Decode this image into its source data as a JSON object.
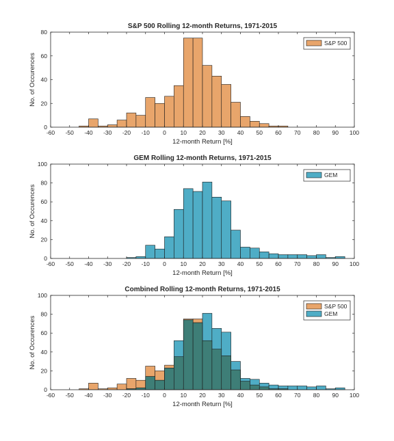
{
  "chart_data": [
    {
      "type": "bar",
      "title": "S&P 500 Rolling 12-month Returns, 1971-2015",
      "xlabel": "12-month Return [%]",
      "ylabel": "No. of Occurences",
      "xlim": [
        -60,
        100
      ],
      "ylim": [
        0,
        80
      ],
      "xticks": [
        -60,
        -50,
        -40,
        -30,
        -20,
        -10,
        0,
        10,
        20,
        30,
        40,
        50,
        60,
        70,
        80,
        90,
        100
      ],
      "yticks": [
        0,
        20,
        40,
        60,
        80
      ],
      "bin_width": 5,
      "legend_position": "top-right",
      "series": [
        {
          "name": "S&P 500",
          "color": "#E8A56B",
          "bin_starts": [
            -45,
            -40,
            -35,
            -30,
            -25,
            -20,
            -15,
            -10,
            -5,
            0,
            5,
            10,
            15,
            20,
            25,
            30,
            35,
            40,
            45,
            50,
            55,
            60
          ],
          "values": [
            1,
            7,
            1,
            2,
            6,
            12,
            10,
            25,
            20,
            26,
            35,
            75,
            75,
            52,
            43,
            36,
            21,
            9,
            5,
            3,
            1,
            1
          ]
        }
      ]
    },
    {
      "type": "bar",
      "title": "GEM Rolling 12-month Returns, 1971-2015",
      "xlabel": "12-month Return [%]",
      "ylabel": "No. of Occurences",
      "xlim": [
        -60,
        100
      ],
      "ylim": [
        0,
        100
      ],
      "xticks": [
        -60,
        -50,
        -40,
        -30,
        -20,
        -10,
        0,
        10,
        20,
        30,
        40,
        50,
        60,
        70,
        80,
        90,
        100
      ],
      "yticks": [
        0,
        20,
        40,
        60,
        80,
        100
      ],
      "bin_width": 5,
      "legend_position": "top-right",
      "series": [
        {
          "name": "GEM",
          "color": "#4FADC6",
          "bin_starts": [
            -20,
            -15,
            -10,
            -5,
            0,
            5,
            10,
            15,
            20,
            25,
            30,
            35,
            40,
            45,
            50,
            55,
            60,
            65,
            70,
            75,
            80,
            85,
            90
          ],
          "values": [
            1,
            2,
            14,
            10,
            23,
            52,
            74,
            71,
            81,
            65,
            61,
            30,
            12,
            11,
            7,
            5,
            4,
            4,
            4,
            3,
            4,
            1,
            2
          ]
        }
      ]
    },
    {
      "type": "bar",
      "title": "Combined Rolling 12-month Returns, 1971-2015",
      "xlabel": "12-month Return [%]",
      "ylabel": "No. of Occurences",
      "xlim": [
        -60,
        100
      ],
      "ylim": [
        0,
        100
      ],
      "xticks": [
        -60,
        -50,
        -40,
        -30,
        -20,
        -10,
        0,
        10,
        20,
        30,
        40,
        50,
        60,
        70,
        80,
        90,
        100
      ],
      "yticks": [
        0,
        20,
        40,
        60,
        80,
        100
      ],
      "bin_width": 5,
      "legend_position": "top-right",
      "overlap_color": "#3E7E77",
      "series": [
        {
          "name": "S&P 500",
          "color": "#E8A56B",
          "bin_starts": [
            -45,
            -40,
            -35,
            -30,
            -25,
            -20,
            -15,
            -10,
            -5,
            0,
            5,
            10,
            15,
            20,
            25,
            30,
            35,
            40,
            45,
            50,
            55,
            60
          ],
          "values": [
            1,
            7,
            1,
            2,
            6,
            12,
            10,
            25,
            20,
            26,
            35,
            75,
            75,
            52,
            43,
            36,
            21,
            9,
            5,
            3,
            1,
            1
          ]
        },
        {
          "name": "GEM",
          "color": "#4FADC6",
          "bin_starts": [
            -20,
            -15,
            -10,
            -5,
            0,
            5,
            10,
            15,
            20,
            25,
            30,
            35,
            40,
            45,
            50,
            55,
            60,
            65,
            70,
            75,
            80,
            85,
            90
          ],
          "values": [
            1,
            2,
            14,
            10,
            23,
            52,
            74,
            71,
            81,
            65,
            61,
            30,
            12,
            11,
            7,
            5,
            4,
            4,
            4,
            3,
            4,
            1,
            2
          ]
        }
      ]
    }
  ]
}
